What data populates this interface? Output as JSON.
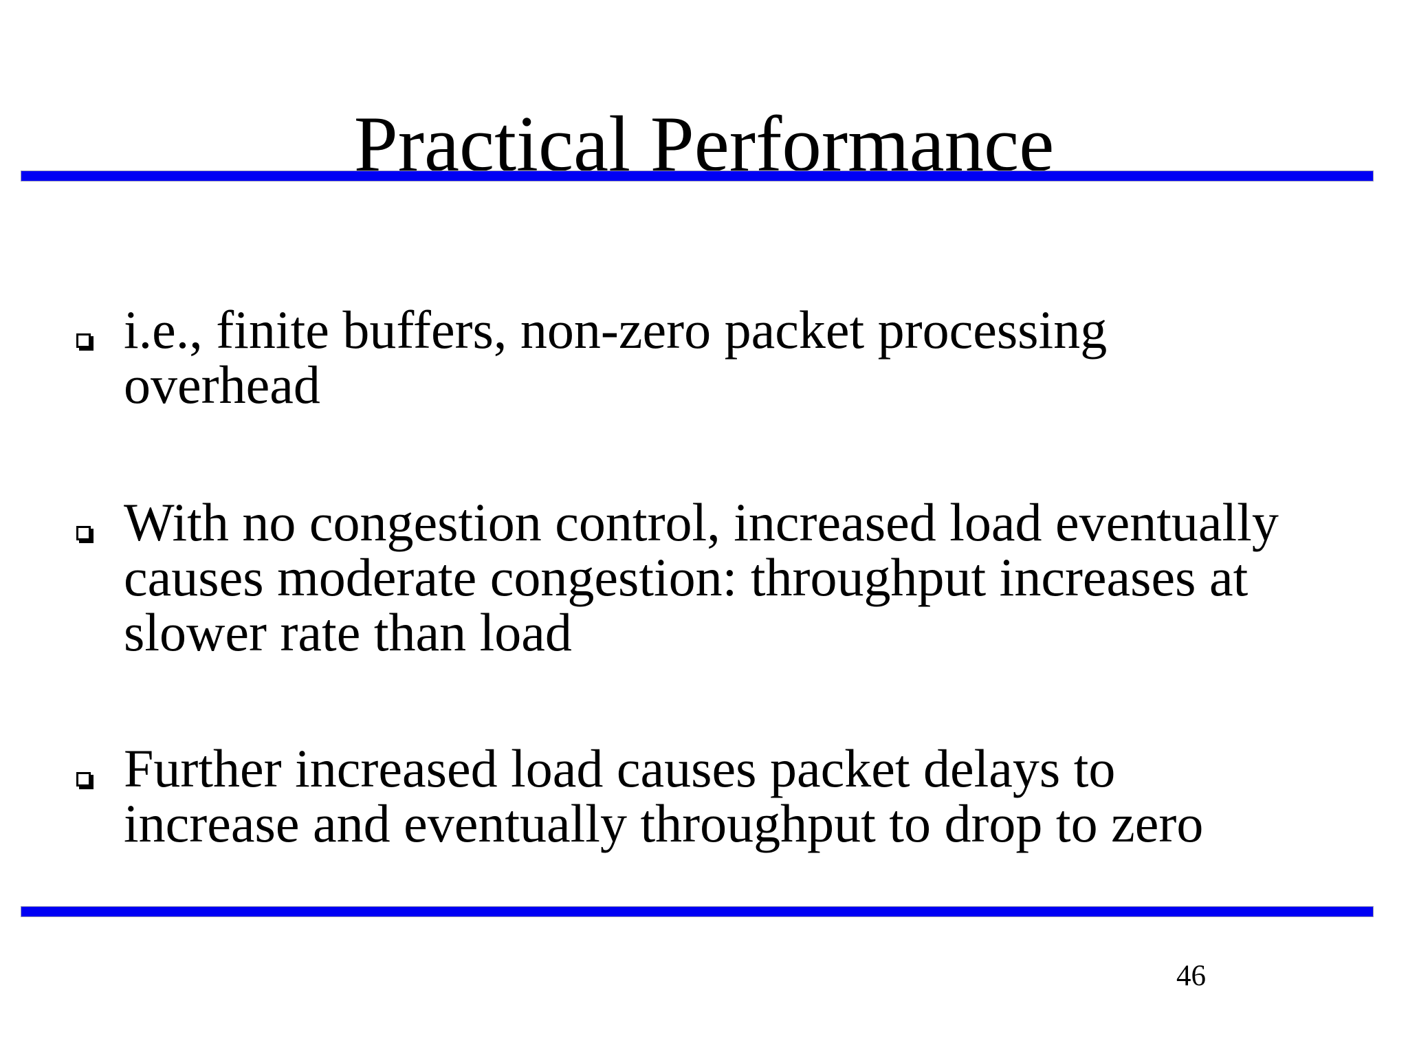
{
  "slide": {
    "title": "Practical Performance",
    "bullets": [
      {
        "lines": [
          "i.e., finite buffers, non-zero packet processing",
          "overhead"
        ]
      },
      {
        "lines": [
          "With no congestion control, increased load eventually",
          "causes moderate congestion: throughput increases at",
          "slower rate than load"
        ]
      },
      {
        "lines": [
          "Further increased load causes packet delays to",
          "increase and eventually throughput to drop to zero"
        ]
      }
    ],
    "page_number": "46",
    "colors": {
      "rule": "#0000f4",
      "text": "#000000",
      "background": "#ffffff"
    }
  }
}
